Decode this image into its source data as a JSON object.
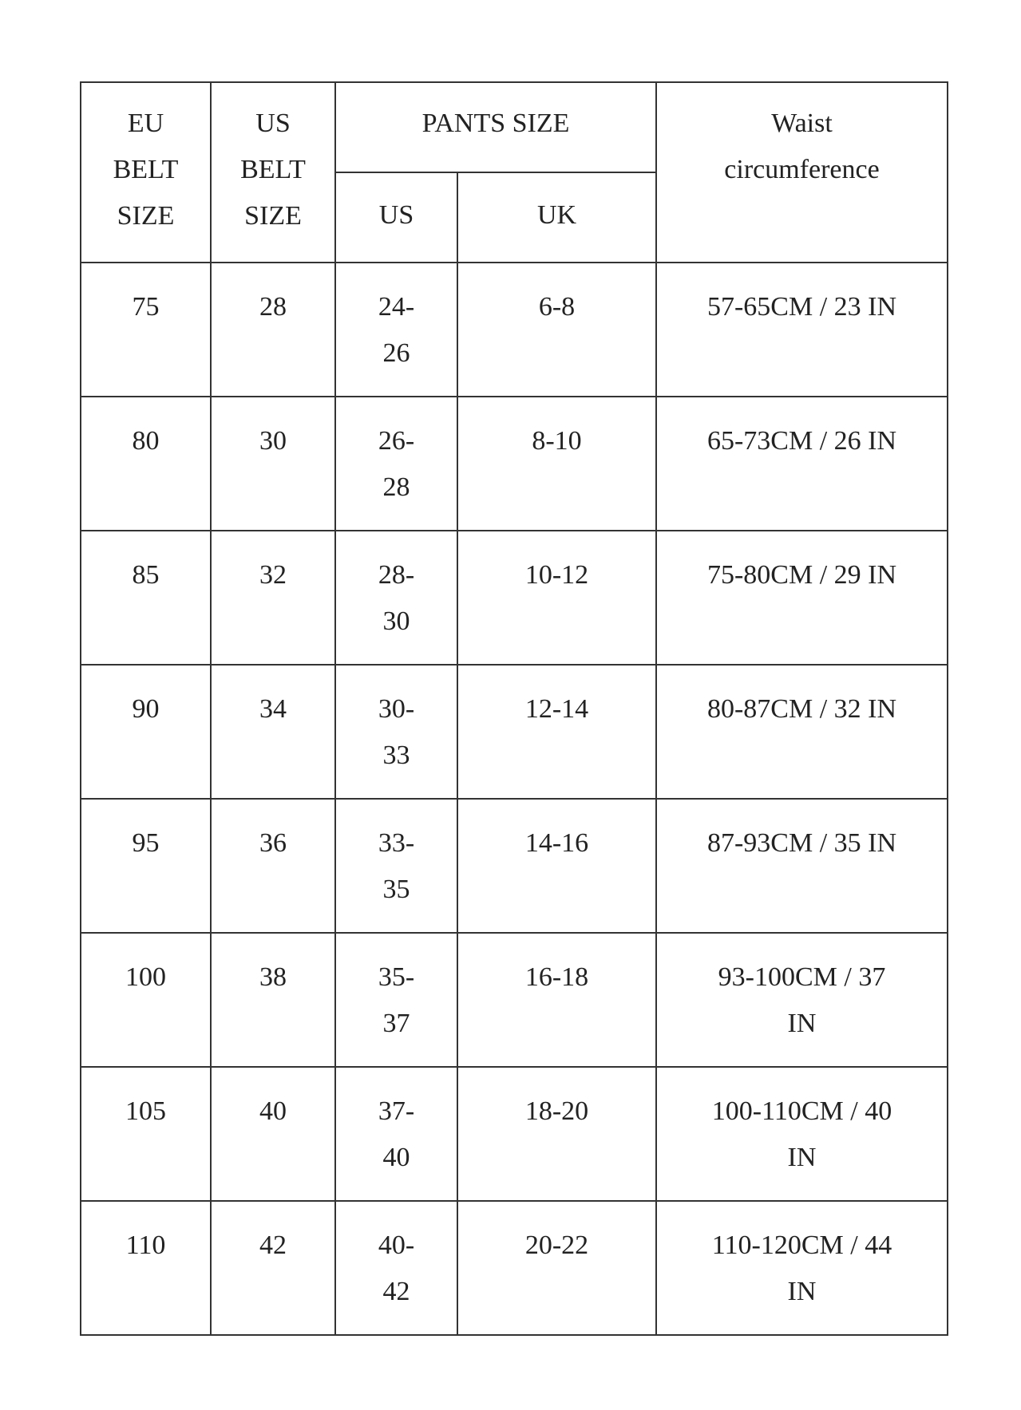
{
  "headers": {
    "eu_belt": [
      "EU",
      "BELT",
      "SIZE"
    ],
    "us_belt": [
      "US",
      "BELT",
      "SIZE"
    ],
    "pants_size": "PANTS SIZE",
    "pants_us": "US",
    "pants_uk": "UK",
    "waist": [
      "Waist",
      "circumference"
    ]
  },
  "rows": [
    {
      "eu": "75",
      "us_belt": "28",
      "pants_us": [
        "24-",
        "26"
      ],
      "pants_uk": "6-8",
      "waist": [
        "57-65CM / 23 IN"
      ]
    },
    {
      "eu": "80",
      "us_belt": "30",
      "pants_us": [
        "26-",
        "28"
      ],
      "pants_uk": "8-10",
      "waist": [
        "65-73CM / 26 IN"
      ]
    },
    {
      "eu": "85",
      "us_belt": "32",
      "pants_us": [
        "28-",
        "30"
      ],
      "pants_uk": "10-12",
      "waist": [
        "75-80CM / 29 IN"
      ]
    },
    {
      "eu": "90",
      "us_belt": "34",
      "pants_us": [
        "30-",
        "33"
      ],
      "pants_uk": "12-14",
      "waist": [
        "80-87CM / 32 IN"
      ]
    },
    {
      "eu": "95",
      "us_belt": "36",
      "pants_us": [
        "33-",
        "35"
      ],
      "pants_uk": "14-16",
      "waist": [
        "87-93CM / 35 IN"
      ]
    },
    {
      "eu": "100",
      "us_belt": "38",
      "pants_us": [
        "35-",
        "37"
      ],
      "pants_uk": "16-18",
      "waist": [
        "93-100CM / 37",
        "IN"
      ]
    },
    {
      "eu": "105",
      "us_belt": "40",
      "pants_us": [
        "37-",
        "40"
      ],
      "pants_uk": "18-20",
      "waist": [
        "100-110CM / 40",
        "IN"
      ]
    },
    {
      "eu": "110",
      "us_belt": "42",
      "pants_us": [
        "40-",
        "42"
      ],
      "pants_uk": "20-22",
      "waist": [
        "110-120CM / 44",
        "IN"
      ]
    }
  ]
}
